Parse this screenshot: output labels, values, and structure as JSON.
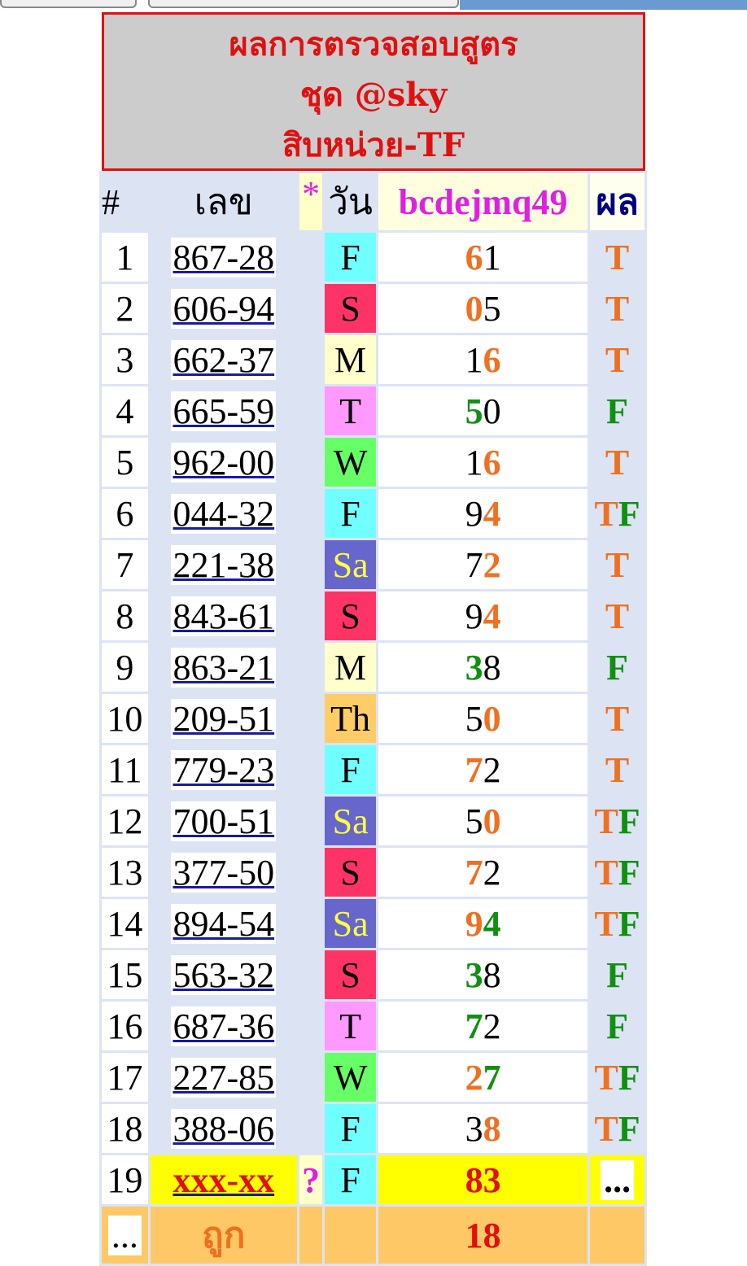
{
  "title": {
    "line1": "ผลการตรวจสอบสูตร",
    "line2": "ชุด @sky",
    "line3": "สิบหน่วย-TF"
  },
  "header": {
    "num": "#",
    "lek": "เลข",
    "star": "*",
    "day": "วัน",
    "formula": "bcdejmq49",
    "result": "ผล"
  },
  "colors": {
    "orange": "#f07020",
    "green": "#109010",
    "title_red": "#e01010",
    "formula_magenta": "#e020e0",
    "result_navy": "#000080"
  },
  "day_colors": {
    "F": "#70ffff",
    "S": "#ff3366",
    "M": "#ffffcc",
    "T": "#ff99ff",
    "W": "#66ff66",
    "Sa": "#6666cc",
    "Th": "#ffcc66"
  },
  "rows": [
    {
      "n": "1",
      "lek": "867-28",
      "day": "F",
      "val": [
        {
          "t": "6",
          "c": "or"
        },
        {
          "t": "1",
          "c": "bk"
        }
      ],
      "res": [
        {
          "t": "T",
          "c": "or"
        }
      ]
    },
    {
      "n": "2",
      "lek": "606-94",
      "day": "S",
      "val": [
        {
          "t": "0",
          "c": "or"
        },
        {
          "t": "5",
          "c": "bk"
        }
      ],
      "res": [
        {
          "t": "T",
          "c": "or"
        }
      ]
    },
    {
      "n": "3",
      "lek": "662-37",
      "day": "M",
      "val": [
        {
          "t": "1",
          "c": "bk"
        },
        {
          "t": "6",
          "c": "or"
        }
      ],
      "res": [
        {
          "t": "T",
          "c": "or"
        }
      ]
    },
    {
      "n": "4",
      "lek": "665-59",
      "day": "T",
      "val": [
        {
          "t": "5",
          "c": "gr"
        },
        {
          "t": "0",
          "c": "bk"
        }
      ],
      "res": [
        {
          "t": "F",
          "c": "gr"
        }
      ]
    },
    {
      "n": "5",
      "lek": "962-00",
      "day": "W",
      "val": [
        {
          "t": "1",
          "c": "bk"
        },
        {
          "t": "6",
          "c": "or"
        }
      ],
      "res": [
        {
          "t": "T",
          "c": "or"
        }
      ]
    },
    {
      "n": "6",
      "lek": "044-32",
      "day": "F",
      "val": [
        {
          "t": "9",
          "c": "bk"
        },
        {
          "t": "4",
          "c": "or"
        }
      ],
      "res": [
        {
          "t": "T",
          "c": "or"
        },
        {
          "t": "F",
          "c": "gr"
        }
      ]
    },
    {
      "n": "7",
      "lek": "221-38",
      "day": "Sa",
      "val": [
        {
          "t": "7",
          "c": "bk"
        },
        {
          "t": "2",
          "c": "or"
        }
      ],
      "res": [
        {
          "t": "T",
          "c": "or"
        }
      ]
    },
    {
      "n": "8",
      "lek": "843-61",
      "day": "S",
      "val": [
        {
          "t": "9",
          "c": "bk"
        },
        {
          "t": "4",
          "c": "or"
        }
      ],
      "res": [
        {
          "t": "T",
          "c": "or"
        }
      ]
    },
    {
      "n": "9",
      "lek": "863-21",
      "day": "M",
      "val": [
        {
          "t": "3",
          "c": "gr"
        },
        {
          "t": "8",
          "c": "bk"
        }
      ],
      "res": [
        {
          "t": "F",
          "c": "gr"
        }
      ]
    },
    {
      "n": "10",
      "lek": "209-51",
      "day": "Th",
      "val": [
        {
          "t": "5",
          "c": "bk"
        },
        {
          "t": "0",
          "c": "or"
        }
      ],
      "res": [
        {
          "t": "T",
          "c": "or"
        }
      ]
    },
    {
      "n": "11",
      "lek": "779-23",
      "day": "F",
      "val": [
        {
          "t": "7",
          "c": "or"
        },
        {
          "t": "2",
          "c": "bk"
        }
      ],
      "res": [
        {
          "t": "T",
          "c": "or"
        }
      ]
    },
    {
      "n": "12",
      "lek": "700-51",
      "day": "Sa",
      "val": [
        {
          "t": "5",
          "c": "bk"
        },
        {
          "t": "0",
          "c": "or"
        }
      ],
      "res": [
        {
          "t": "T",
          "c": "or"
        },
        {
          "t": "F",
          "c": "gr"
        }
      ]
    },
    {
      "n": "13",
      "lek": "377-50",
      "day": "S",
      "val": [
        {
          "t": "7",
          "c": "or"
        },
        {
          "t": "2",
          "c": "bk"
        }
      ],
      "res": [
        {
          "t": "T",
          "c": "or"
        },
        {
          "t": "F",
          "c": "gr"
        }
      ]
    },
    {
      "n": "14",
      "lek": "894-54",
      "day": "Sa",
      "val": [
        {
          "t": "9",
          "c": "or"
        },
        {
          "t": "4",
          "c": "gr"
        }
      ],
      "res": [
        {
          "t": "T",
          "c": "or"
        },
        {
          "t": "F",
          "c": "gr"
        }
      ]
    },
    {
      "n": "15",
      "lek": "563-32",
      "day": "S",
      "val": [
        {
          "t": "3",
          "c": "gr"
        },
        {
          "t": "8",
          "c": "bk"
        }
      ],
      "res": [
        {
          "t": "F",
          "c": "gr"
        }
      ]
    },
    {
      "n": "16",
      "lek": "687-36",
      "day": "T",
      "val": [
        {
          "t": "7",
          "c": "gr"
        },
        {
          "t": "2",
          "c": "bk"
        }
      ],
      "res": [
        {
          "t": "F",
          "c": "gr"
        }
      ]
    },
    {
      "n": "17",
      "lek": "227-85",
      "day": "W",
      "val": [
        {
          "t": "2",
          "c": "or"
        },
        {
          "t": "7",
          "c": "gr"
        }
      ],
      "res": [
        {
          "t": "T",
          "c": "or"
        },
        {
          "t": "F",
          "c": "gr"
        }
      ]
    },
    {
      "n": "18",
      "lek": "388-06",
      "day": "F",
      "val": [
        {
          "t": "3",
          "c": "bk"
        },
        {
          "t": "8",
          "c": "or"
        }
      ],
      "res": [
        {
          "t": "T",
          "c": "or"
        },
        {
          "t": "F",
          "c": "gr"
        }
      ]
    }
  ],
  "pending": {
    "n": "19",
    "lek": "xxx-xx",
    "star": "?",
    "day": "F",
    "val": "83",
    "res": "..."
  },
  "summary": {
    "more": "...",
    "label": "ถูก",
    "count": "18"
  }
}
